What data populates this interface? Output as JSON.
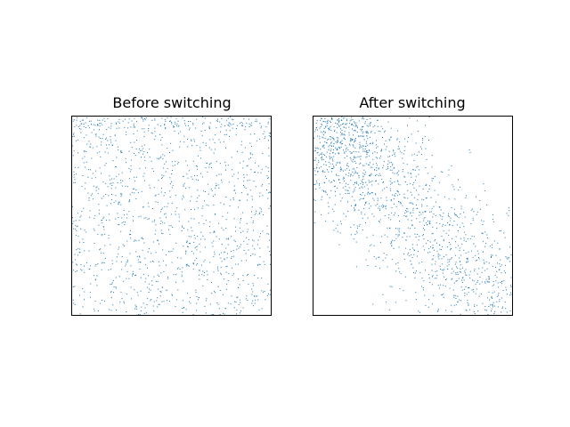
{
  "figure": {
    "background": "#ffffff",
    "marker_color": "#1f77b4",
    "frame_color": "#000000"
  },
  "chart_data": [
    {
      "type": "scatter",
      "title": "Before switching",
      "xlabel": "",
      "ylabel": "",
      "xlim": [
        0,
        1
      ],
      "ylim": [
        1,
        0
      ],
      "ticks": "none",
      "grid": false,
      "point_count": 1350,
      "distribution": "uniform",
      "seed": 12345
    },
    {
      "type": "scatter",
      "title": "After switching",
      "xlabel": "",
      "ylabel": "",
      "xlim": [
        0,
        1
      ],
      "ylim": [
        1,
        0
      ],
      "ticks": "none",
      "grid": false,
      "point_count": 1500,
      "distribution": "concentrated near diagonal, densest at top-left",
      "seed": 67890
    }
  ]
}
